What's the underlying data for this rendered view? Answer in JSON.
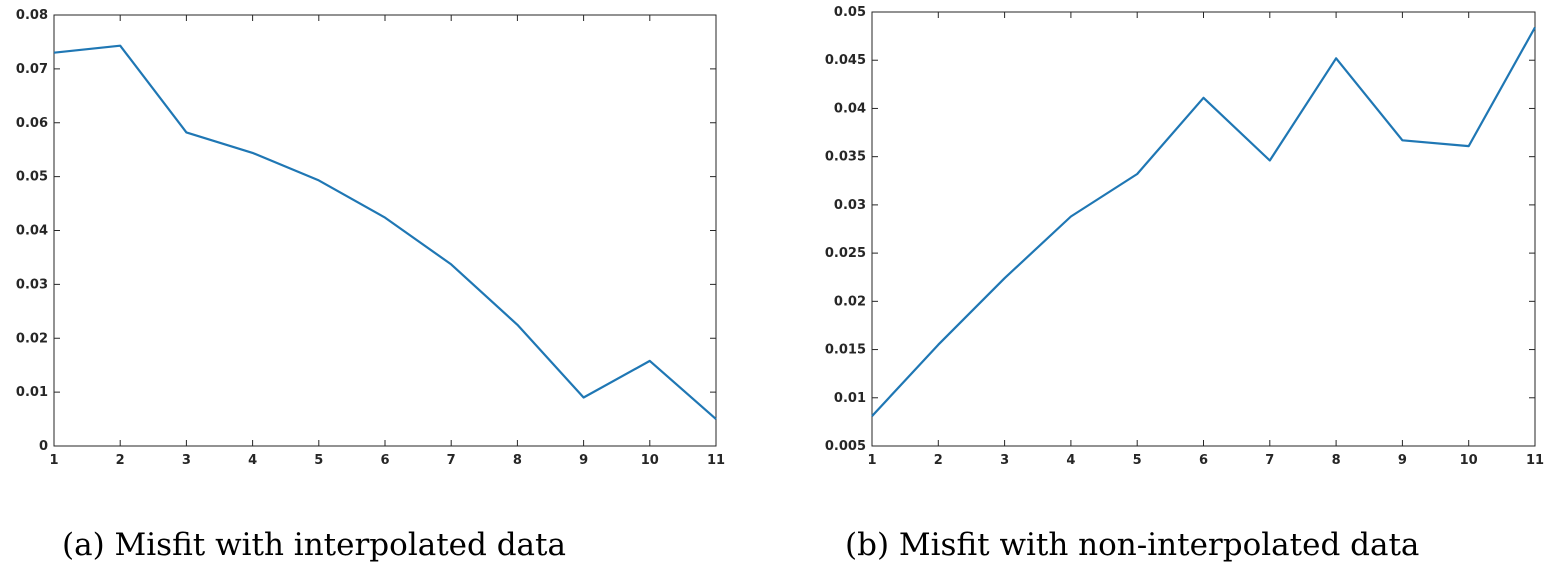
{
  "chart_data": [
    {
      "type": "line",
      "title": "",
      "caption": "(a) Misfit with interpolated data",
      "xlabel": "",
      "ylabel": "",
      "x": [
        1,
        2,
        3,
        4,
        5,
        6,
        7,
        8,
        9,
        10,
        11
      ],
      "series": [
        {
          "values": [
            0.073,
            0.0743,
            0.0582,
            0.0544,
            0.0493,
            0.0424,
            0.0337,
            0.0225,
            0.009,
            0.0158,
            0.005
          ]
        }
      ],
      "xlim": [
        1,
        11
      ],
      "ylim": [
        0,
        0.08
      ],
      "xticks": [
        "1",
        "2",
        "3",
        "4",
        "5",
        "6",
        "7",
        "8",
        "9",
        "10",
        "11"
      ],
      "yticks": [
        "0",
        "0.01",
        "0.02",
        "0.03",
        "0.04",
        "0.05",
        "0.06",
        "0.07",
        "0.08"
      ],
      "grid": false,
      "color": "#1f77b4"
    },
    {
      "type": "line",
      "title": "",
      "caption": "(b) Misfit with non-interpolated data",
      "xlabel": "",
      "ylabel": "",
      "x": [
        1,
        2,
        3,
        4,
        5,
        6,
        7,
        8,
        9,
        10,
        11
      ],
      "series": [
        {
          "values": [
            0.0081,
            0.0155,
            0.0224,
            0.0288,
            0.0332,
            0.0411,
            0.0346,
            0.0452,
            0.0367,
            0.0361,
            0.0484
          ]
        }
      ],
      "xlim": [
        1,
        11
      ],
      "ylim": [
        0.005,
        0.05
      ],
      "xticks": [
        "1",
        "2",
        "3",
        "4",
        "5",
        "6",
        "7",
        "8",
        "9",
        "10",
        "11"
      ],
      "yticks": [
        "0.005",
        "0.01",
        "0.015",
        "0.02",
        "0.025",
        "0.03",
        "0.035",
        "0.04",
        "0.045",
        "0.05"
      ],
      "grid": false,
      "color": "#1f77b4"
    }
  ]
}
